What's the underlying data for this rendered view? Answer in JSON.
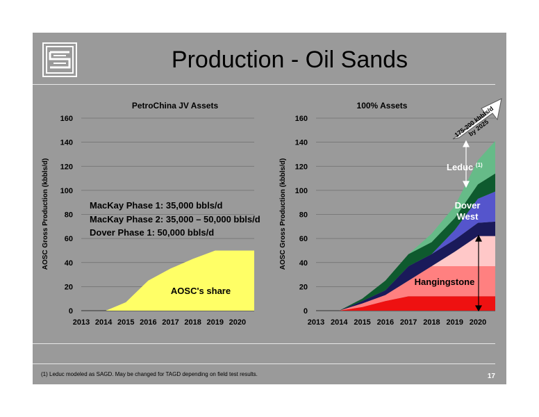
{
  "slide": {
    "title": "Production - Oil Sands",
    "footnote": "(1)  Leduc modeled as SAGD. May be changed for TAGD depending on field test results.",
    "page_number": "17",
    "background_color": "#9a9a9a"
  },
  "chart_data": [
    {
      "type": "area",
      "title": "PetroChina JV Assets",
      "ylabel": "AOSC Gross Production (kbbls/d)",
      "xlabel": "",
      "x_ticks": [
        "2013",
        "2014",
        "2015",
        "2016",
        "2017",
        "2018",
        "2019",
        "2020"
      ],
      "y_ticks": [
        "0",
        "20",
        "40",
        "60",
        "80",
        "100",
        "120",
        "140",
        "160"
      ],
      "ylim": [
        0,
        160
      ],
      "xlim": [
        2013,
        2020.75
      ],
      "grid": true,
      "series": [
        {
          "name": "AOSC's share",
          "color": "#ffff66",
          "x": [
            2014.1,
            2015,
            2016,
            2017,
            2018,
            2019,
            2019.25,
            2020.75
          ],
          "values": [
            0,
            7,
            25,
            35,
            43,
            50,
            50,
            50
          ]
        }
      ],
      "annotations": [
        "MacKay Phase 1: 35,000 bbls/d",
        "MacKay Phase 2: 35,000 – 50,000 bbls/d",
        "Dover Phase 1: 50,000 bbls/d"
      ]
    },
    {
      "type": "area",
      "stacked": true,
      "title": "100% Assets",
      "ylabel": "AOSC Gross Production (kbbls/d)",
      "xlabel": "",
      "x_ticks": [
        "2013",
        "2014",
        "2015",
        "2016",
        "2017",
        "2018",
        "2019",
        "2020"
      ],
      "y_ticks": [
        "0",
        "20",
        "40",
        "60",
        "80",
        "100",
        "120",
        "140",
        "160"
      ],
      "ylim": [
        0,
        160
      ],
      "xlim": [
        2013,
        2020.75
      ],
      "grid": true,
      "x": [
        2014,
        2015,
        2016,
        2017,
        2018,
        2019,
        2020,
        2020.75
      ],
      "series": [
        {
          "name": "",
          "color": "#ee1111",
          "values": [
            0,
            3,
            8,
            12,
            12,
            12,
            12,
            12
          ]
        },
        {
          "name": "",
          "color": "#ff8080",
          "values": [
            0,
            3,
            5,
            13,
            25,
            25,
            25,
            25
          ]
        },
        {
          "name": "",
          "color": "#ffc8c8",
          "values": [
            0,
            0,
            0,
            0,
            0,
            12,
            25,
            25
          ]
        },
        {
          "name": "",
          "color": "#1a1a5a",
          "values": [
            0,
            2,
            4,
            12,
            10,
            10,
            11,
            12
          ]
        },
        {
          "name": "",
          "color": "#5555cc",
          "values": [
            0,
            0,
            0,
            0,
            0,
            8,
            20,
            25
          ]
        },
        {
          "name": "",
          "color": "#0e5a2e",
          "values": [
            0,
            2,
            8,
            10,
            10,
            10,
            12,
            15
          ]
        },
        {
          "name": "",
          "color": "#66bb88",
          "values": [
            0,
            0,
            0,
            0,
            7,
            10,
            20,
            27
          ]
        }
      ],
      "labels": {
        "leduc": "Leduc",
        "leduc_sup": "(1)",
        "dover_1": "Dover",
        "dover_2": "West",
        "hangingstone": "Hangingstone",
        "arrow_1": "175-200 kbbls/d",
        "arrow_2": "by 2025"
      },
      "label_colors": {
        "leduc": "#ffffff",
        "dover": "#ffffff",
        "hangingstone": "#000000"
      }
    }
  ],
  "inside_labels": {
    "aosc_share": "AOSC's share"
  }
}
